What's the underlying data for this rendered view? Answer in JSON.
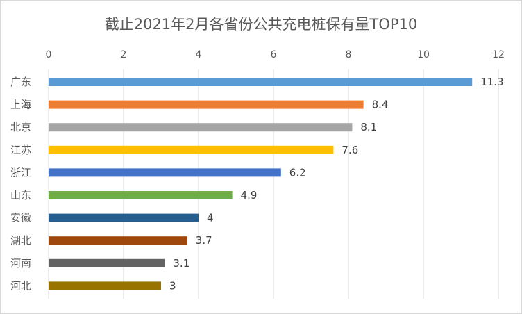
{
  "chart_data": {
    "type": "bar",
    "orientation": "horizontal",
    "title": "截止2021年2月各省份公共充电桩保有量TOP10",
    "xlabel": "",
    "ylabel": "",
    "xlim": [
      0,
      12
    ],
    "x_ticks": [
      0,
      2,
      4,
      6,
      8,
      10,
      12
    ],
    "x_axis_position": "top",
    "grid": "vertical",
    "legend": "none",
    "categories": [
      "广东",
      "上海",
      "北京",
      "江苏",
      "浙江",
      "山东",
      "安徽",
      "湖北",
      "河南",
      "河北"
    ],
    "values": [
      11.3,
      8.4,
      8.1,
      7.6,
      6.2,
      4.9,
      4,
      3.7,
      3.1,
      3
    ],
    "data_labels": [
      "11.3",
      "8.4",
      "8.1",
      "7.6",
      "6.2",
      "4.9",
      "4",
      "3.7",
      "3.1",
      "3"
    ],
    "colors": [
      "#5b9bd5",
      "#ed7d31",
      "#a5a5a5",
      "#ffc000",
      "#4472c4",
      "#70ad47",
      "#255e91",
      "#9e480e",
      "#636363",
      "#997300"
    ]
  }
}
